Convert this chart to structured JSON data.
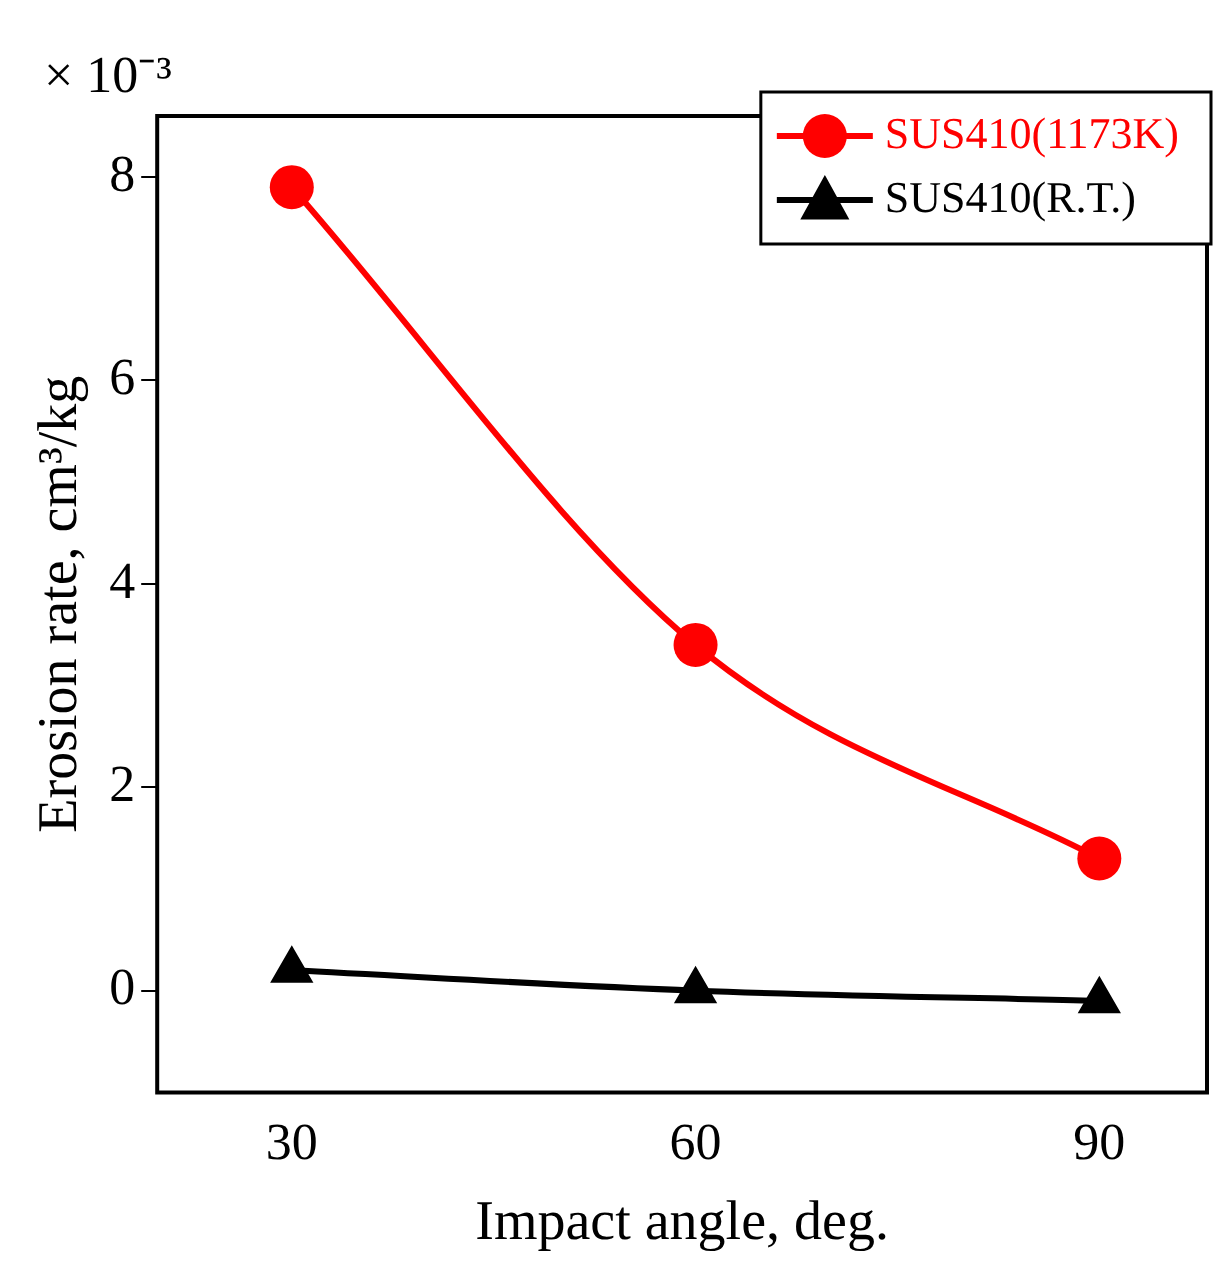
{
  "chart_data": {
    "type": "line",
    "xlabel": "Impact angle, deg.",
    "ylabel": "Erosion rate, cm³/kg",
    "annotations": [
      "× 10⁻³"
    ],
    "x": [
      30,
      60,
      90
    ],
    "xlim": [
      20,
      98
    ],
    "xticks": [
      30,
      60,
      90
    ],
    "ylim": [
      -1,
      8.6
    ],
    "yticks": [
      0,
      2,
      4,
      6,
      8
    ],
    "grid": false,
    "legend": "top right",
    "series": [
      {
        "name": "SUS410(1173K)",
        "color": "#ff0000",
        "values": [
          7.9,
          3.4,
          1.3
        ],
        "marker": "circle"
      },
      {
        "name": "SUS410(R.T.)",
        "color": "#000000",
        "values": [
          0.2,
          0.0,
          -0.1
        ],
        "marker": "triangle"
      }
    ]
  }
}
